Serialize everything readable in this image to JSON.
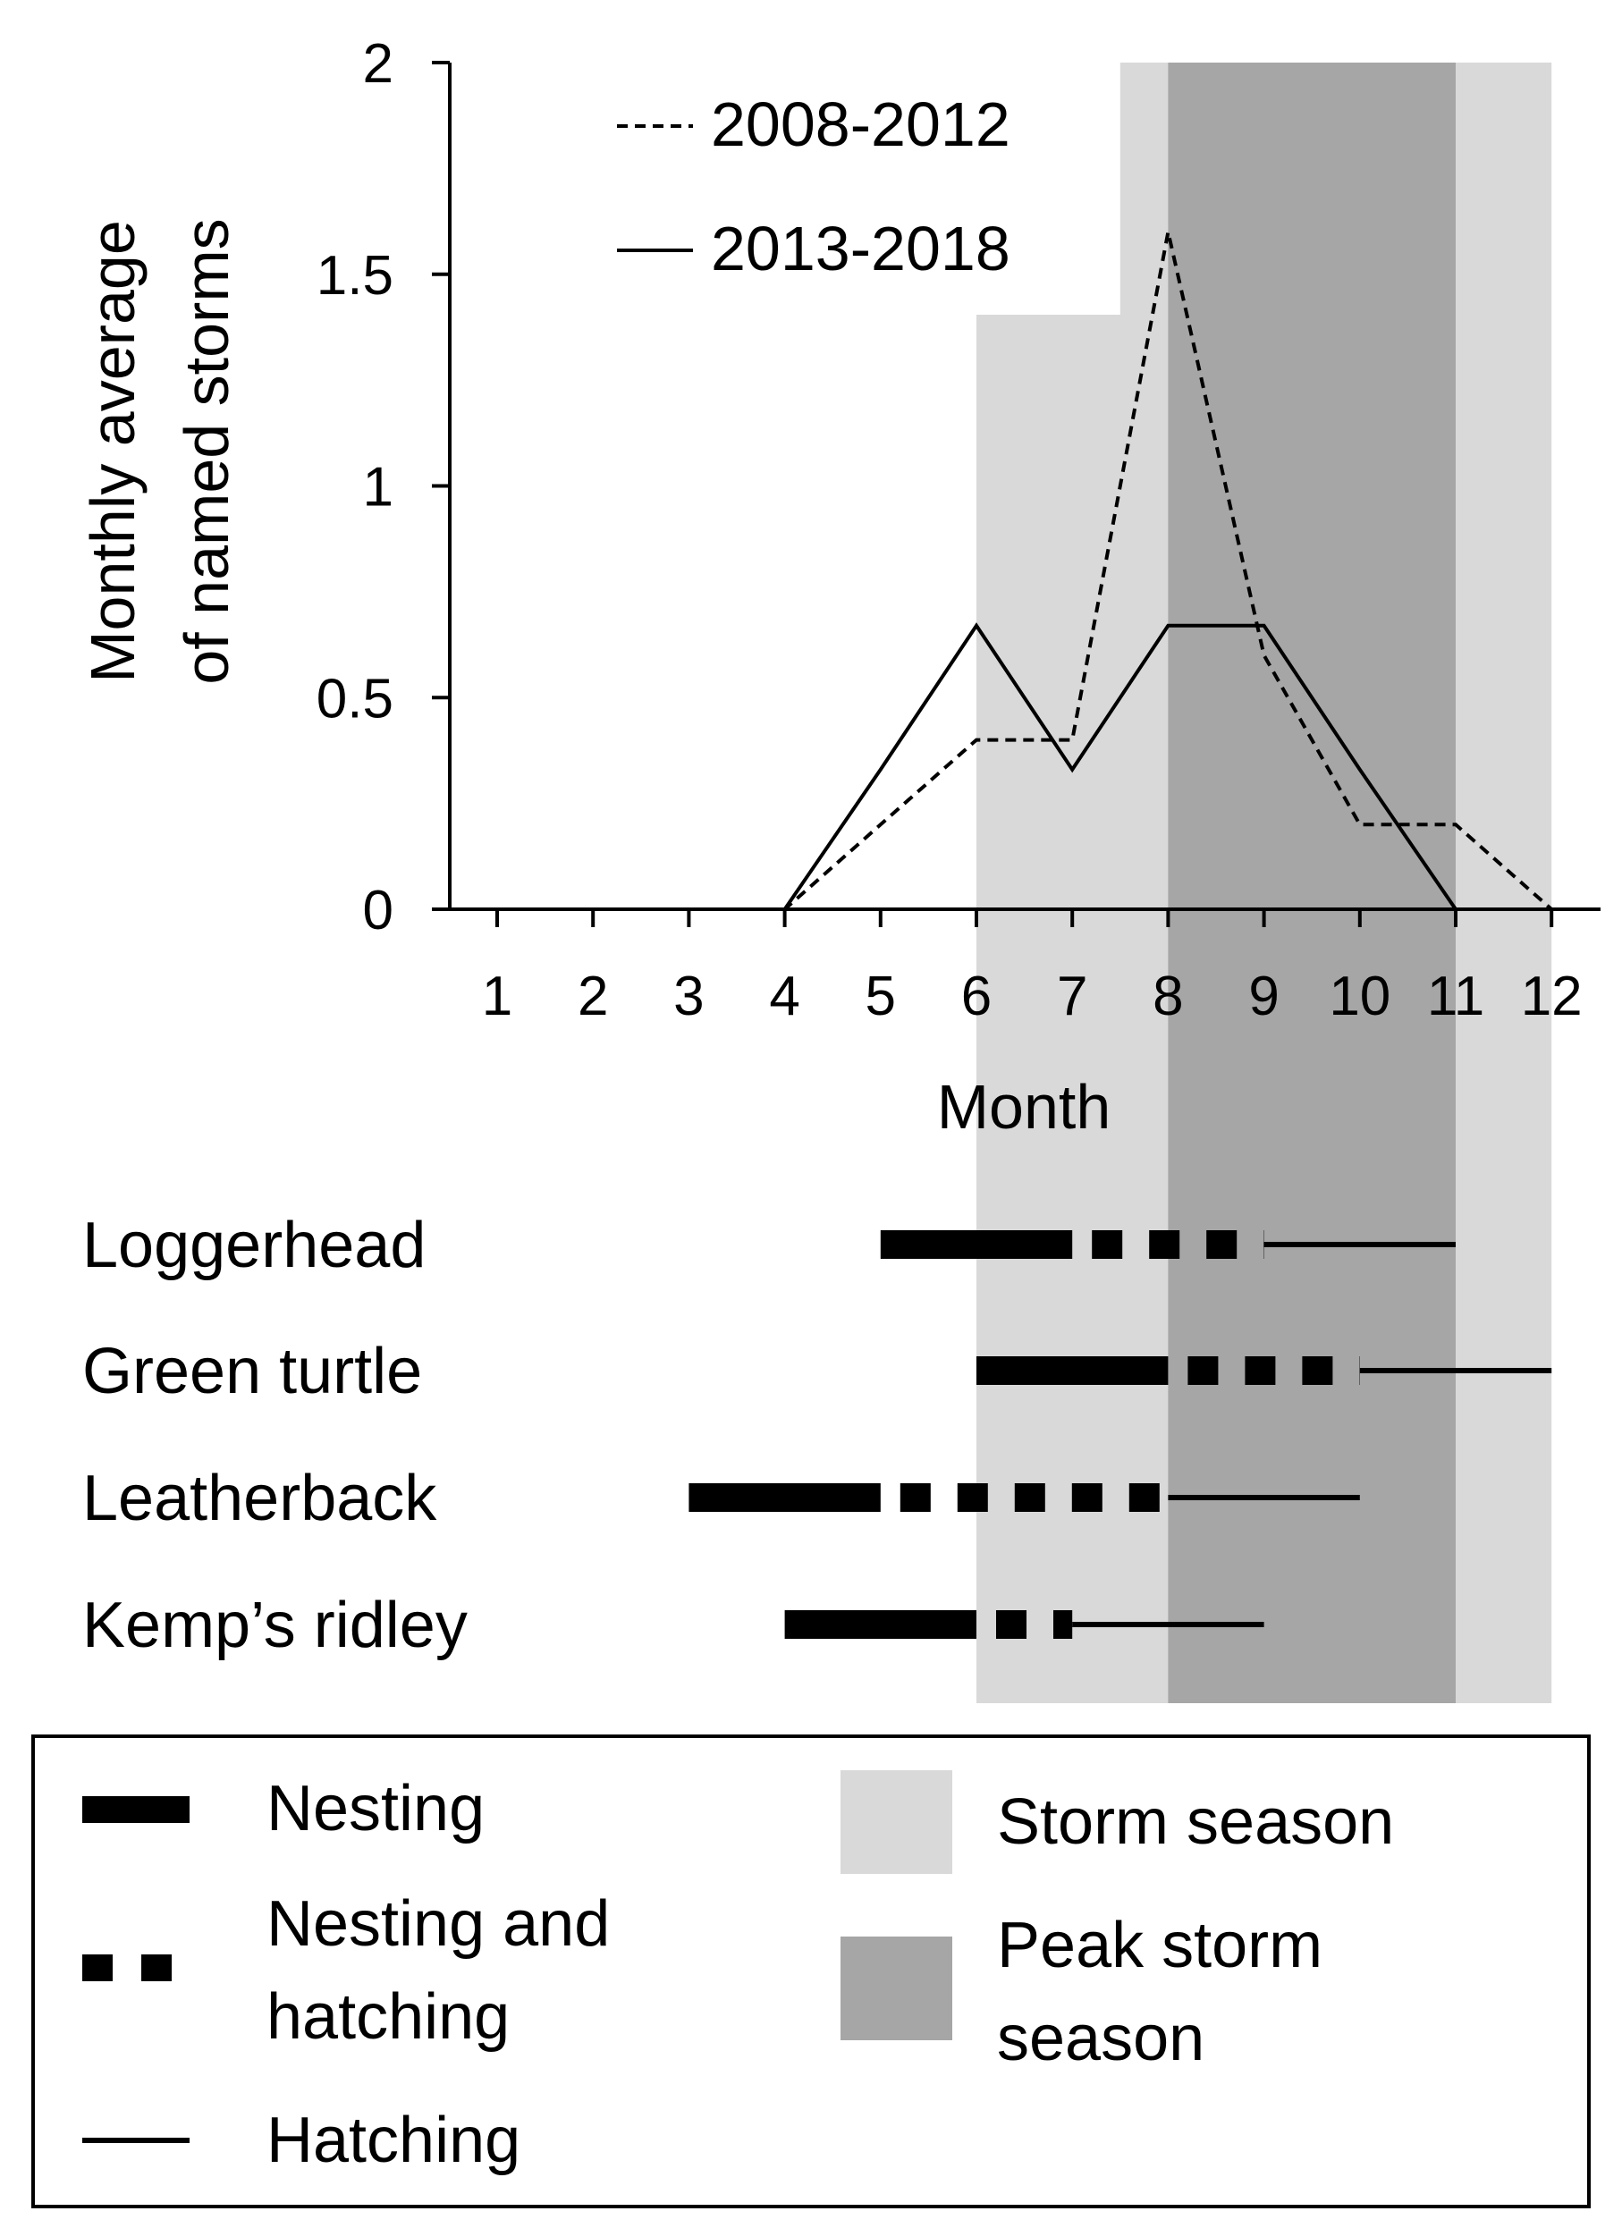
{
  "chart_data": {
    "type": "line",
    "xlabel": "Month",
    "ylabel_lines": [
      "Monthly average",
      "of named storms"
    ],
    "x": [
      1,
      2,
      3,
      4,
      5,
      6,
      7,
      8,
      9,
      10,
      11,
      12
    ],
    "xticks": [
      "1",
      "2",
      "3",
      "4",
      "5",
      "6",
      "7",
      "8",
      "9",
      "10",
      "11",
      "12"
    ],
    "ylim": [
      0,
      2
    ],
    "yticks": [
      "0",
      "0.5",
      "1",
      "1.5",
      "2"
    ],
    "ytick_values": [
      0,
      0.5,
      1,
      1.5,
      2
    ],
    "series": [
      {
        "name": "2008-2012",
        "style": "dashed",
        "values": [
          0,
          0,
          0,
          0,
          0.2,
          0.4,
          0.4,
          1.6,
          0.6,
          0.2,
          0.2,
          0
        ]
      },
      {
        "name": "2013-2018",
        "style": "solid",
        "values": [
          0,
          0,
          0,
          0,
          0.33,
          0.67,
          0.33,
          0.67,
          0.67,
          0.33,
          0,
          null
        ]
      }
    ],
    "shaded_regions": [
      {
        "name": "Storm season",
        "from_month": 6,
        "to_month": 12,
        "color": "#d9d9d9"
      },
      {
        "name": "Peak storm season",
        "from_month": 8,
        "to_month": 11,
        "color": "#a6a6a6"
      }
    ],
    "species": [
      {
        "name": "Loggerhead",
        "nesting": [
          5,
          7
        ],
        "nesting_and_hatching": [
          7,
          9
        ],
        "hatching": [
          9,
          11
        ]
      },
      {
        "name": "Green turtle",
        "nesting": [
          6,
          8
        ],
        "nesting_and_hatching": [
          8,
          10
        ],
        "hatching": [
          10,
          12
        ]
      },
      {
        "name": "Leatherback",
        "nesting": [
          3,
          5
        ],
        "nesting_and_hatching": [
          5,
          8
        ],
        "hatching": [
          8,
          10
        ]
      },
      {
        "name": "Kemp’s ridley",
        "nesting": [
          4,
          6
        ],
        "nesting_and_hatching": [
          6,
          7
        ],
        "hatching": [
          7,
          9
        ]
      }
    ]
  },
  "legend": {
    "nesting": "Nesting",
    "nesting_and_hatching_line1": "Nesting and",
    "nesting_and_hatching_line2": "hatching",
    "hatching": "Hatching",
    "storm_season": "Storm season",
    "peak_storm_season_line1": "Peak storm",
    "peak_storm_season_line2": "season"
  },
  "colors": {
    "storm_season": "#d9d9d9",
    "peak_storm_season": "#a6a6a6",
    "ink": "#000000"
  }
}
